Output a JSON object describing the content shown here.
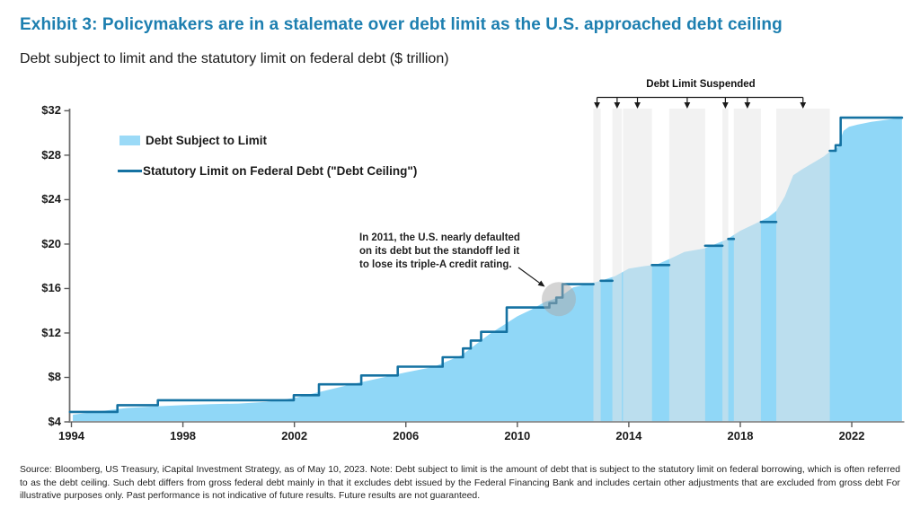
{
  "header": {
    "title": "Exhibit 3: Policymakers are in a stalemate over debt limit as the U.S. approached debt ceiling",
    "title_color": "#1d7fb0",
    "subtitle": "Debt subject to limit and the statutory limit on federal debt ($ trillion)"
  },
  "legend": [
    {
      "label": "Debt Subject to Limit",
      "swatch": "area",
      "color": "#9bdaf7"
    },
    {
      "label": "Statutory Limit on Federal Debt (\"Debt Ceiling\")",
      "swatch": "line",
      "color": "#1572a2"
    }
  ],
  "annotations": {
    "suspended_label": "Debt Limit Suspended",
    "note_lines": [
      "In 2011, the U.S. nearly defaulted",
      "on its debt but the standoff led it",
      "to lose its triple-A credit rating."
    ]
  },
  "source": "Source: Bloomberg, US Treasury, iCapital Investment Strategy, as of May 10, 2023. Note: Debt subject to limit is the amount of debt that is subject to the statutory limit on federal borrowing, which is often referred to as the debt ceiling. Such debt differs from gross federal debt mainly in that it excludes debt issued by the Federal Financing Bank and includes certain other adjustments that are excluded from gross debt For illustrative purposes only. Past performance is not indicative of future results. Future results are not guaranteed.",
  "chart_data": {
    "type": "area",
    "title": "Debt subject to limit and the statutory limit on federal debt",
    "unit": "$ trillion",
    "xlim": [
      1994,
      2023.8
    ],
    "ylim": [
      4,
      32
    ],
    "x_ticks": [
      1994,
      1998,
      2002,
      2006,
      2010,
      2014,
      2018,
      2022
    ],
    "y_ticks": [
      4,
      8,
      12,
      16,
      20,
      24,
      28,
      32
    ],
    "y_tick_prefix": "$",
    "grid": false,
    "legend_position": "inside-top-left",
    "series": [
      {
        "name": "Debt Subject to Limit",
        "type": "area",
        "color": "#90d7f7",
        "points": [
          [
            1994.05,
            4.65
          ],
          [
            1995,
            4.95
          ],
          [
            1996,
            5.25
          ],
          [
            1997,
            5.4
          ],
          [
            1998,
            5.5
          ],
          [
            1999,
            5.6
          ],
          [
            2000,
            5.65
          ],
          [
            2001,
            5.8
          ],
          [
            2002,
            6.15
          ],
          [
            2003,
            6.75
          ],
          [
            2004,
            7.35
          ],
          [
            2005,
            7.9
          ],
          [
            2006,
            8.45
          ],
          [
            2007,
            8.95
          ],
          [
            2008,
            10.0
          ],
          [
            2009,
            11.9
          ],
          [
            2010,
            13.5
          ],
          [
            2010.5,
            14.1
          ],
          [
            2011,
            14.8
          ],
          [
            2011.5,
            15.2
          ],
          [
            2012,
            16.1
          ],
          [
            2012.7,
            16.5
          ],
          [
            2013,
            16.7
          ],
          [
            2013.5,
            17.1
          ],
          [
            2014,
            17.8
          ],
          [
            2014.5,
            18.0
          ],
          [
            2015,
            18.15
          ],
          [
            2015.5,
            18.7
          ],
          [
            2016,
            19.3
          ],
          [
            2016.7,
            19.6
          ],
          [
            2017,
            19.9
          ],
          [
            2017.5,
            20.4
          ],
          [
            2018,
            21.2
          ],
          [
            2018.5,
            21.8
          ],
          [
            2019,
            22.4
          ],
          [
            2019.3,
            23.0
          ],
          [
            2019.6,
            24.3
          ],
          [
            2019.9,
            26.2
          ],
          [
            2020.2,
            26.7
          ],
          [
            2020.6,
            27.3
          ],
          [
            2021,
            27.9
          ],
          [
            2021.2,
            28.3
          ],
          [
            2021.5,
            28.7
          ],
          [
            2021.7,
            30.2
          ],
          [
            2021.9,
            30.55
          ],
          [
            2022.2,
            30.75
          ],
          [
            2022.7,
            31.0
          ],
          [
            2023.3,
            31.2
          ],
          [
            2023.8,
            31.35
          ]
        ]
      },
      {
        "name": "Statutory Limit on Federal Debt (\"Debt Ceiling\")",
        "type": "step-line",
        "color": "#1572a2",
        "segments": [
          [
            [
              1993.95,
              4.9
            ],
            [
              1995.65,
              4.9
            ],
            [
              1995.65,
              5.5
            ],
            [
              1997.1,
              5.5
            ],
            [
              1997.1,
              5.95
            ],
            [
              2001.98,
              5.95
            ],
            [
              2001.98,
              6.4
            ],
            [
              2002.88,
              6.4
            ],
            [
              2002.88,
              7.38
            ],
            [
              2004.4,
              7.38
            ],
            [
              2004.4,
              8.18
            ],
            [
              2005.71,
              8.18
            ],
            [
              2005.71,
              8.97
            ],
            [
              2007.32,
              8.97
            ],
            [
              2007.32,
              9.82
            ],
            [
              2008.05,
              9.82
            ],
            [
              2008.05,
              10.61
            ],
            [
              2008.33,
              10.61
            ],
            [
              2008.33,
              11.32
            ],
            [
              2008.7,
              11.32
            ],
            [
              2008.7,
              12.1
            ],
            [
              2009.62,
              12.1
            ],
            [
              2009.62,
              14.29
            ],
            [
              2011.15,
              14.29
            ],
            [
              2011.15,
              14.69
            ],
            [
              2011.4,
              14.69
            ],
            [
              2011.4,
              15.19
            ],
            [
              2011.62,
              15.19
            ],
            [
              2011.62,
              16.39
            ],
            [
              2012.73,
              16.39
            ]
          ],
          [
            [
              2012.99,
              16.7
            ],
            [
              2013.41,
              16.7
            ]
          ],
          [
            [
              2014.83,
              18.11
            ],
            [
              2015.45,
              18.11
            ]
          ],
          [
            [
              2016.74,
              19.85
            ],
            [
              2017.36,
              19.85
            ]
          ],
          [
            [
              2017.57,
              20.46
            ],
            [
              2017.77,
              20.46
            ]
          ],
          [
            [
              2018.74,
              21.99
            ],
            [
              2019.29,
              21.99
            ]
          ],
          [
            [
              2021.21,
              28.4
            ],
            [
              2021.42,
              28.4
            ],
            [
              2021.42,
              28.9
            ],
            [
              2021.6,
              28.9
            ],
            [
              2021.6,
              31.38
            ],
            [
              2023.8,
              31.38
            ]
          ]
        ]
      }
    ],
    "suspension_bands": [
      [
        2012.73,
        2012.99
      ],
      [
        2013.41,
        2013.75
      ],
      [
        2013.79,
        2014.83
      ],
      [
        2015.45,
        2016.74
      ],
      [
        2017.36,
        2017.57
      ],
      [
        2017.77,
        2018.74
      ],
      [
        2019.29,
        2021.21
      ]
    ],
    "band_label": "Debt Limit Suspended",
    "highlight": {
      "year": 2011.49,
      "value": 15.05,
      "radius_px": 19
    }
  }
}
